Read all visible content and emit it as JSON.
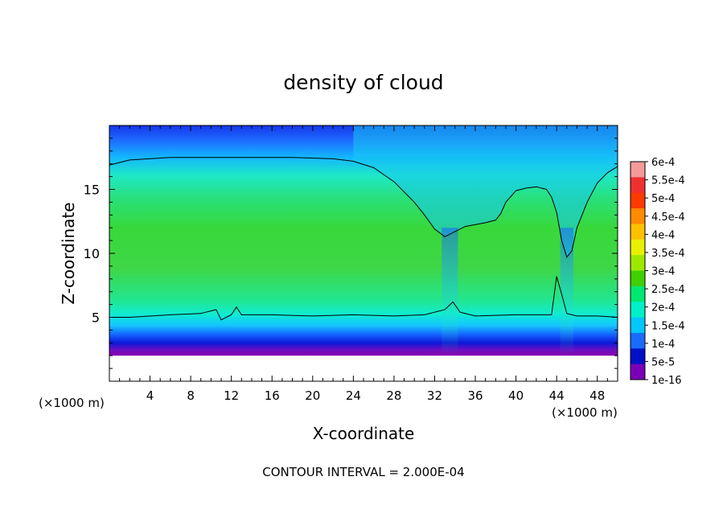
{
  "chart_data": {
    "type": "heatmap",
    "title": "density of cloud",
    "xlabel": "X-coordinate",
    "ylabel": "Z-coordinate",
    "x_unit": "(×1000 m)",
    "y_unit": "(×1000 m)",
    "xlim": [
      0,
      50
    ],
    "ylim": [
      0,
      20
    ],
    "x_ticks": [
      4,
      8,
      12,
      16,
      20,
      24,
      28,
      32,
      36,
      40,
      44,
      48
    ],
    "y_ticks": [
      5,
      10,
      15
    ],
    "footer": "CONTOUR INTERVAL = 2.000E-04",
    "colorbar": {
      "labels": [
        "6e-4",
        "5.5e-4",
        "5e-4",
        "4.5e-4",
        "4e-4",
        "3.5e-4",
        "3e-4",
        "2.5e-4",
        "2e-4",
        "1.5e-4",
        "1e-4",
        "5e-5",
        "1e-16"
      ],
      "colors": [
        "#f49a9a",
        "#f03030",
        "#ff3a00",
        "#ff8a00",
        "#ffc000",
        "#e8f000",
        "#9ee800",
        "#40d000",
        "#00e870",
        "#00f0c8",
        "#00c8ff",
        "#1a6cff",
        "#0010c8",
        "#7a00b8"
      ]
    },
    "field": {
      "cloud_base_km": 2.0,
      "cloud_top_km": 19.6,
      "core_value": 0.00027,
      "contour_2e-4": {
        "x": [
          0,
          2,
          6,
          10,
          14,
          18,
          22,
          24,
          26,
          28,
          30,
          31,
          32,
          33,
          35,
          37,
          38,
          38.5,
          39,
          40,
          41,
          42,
          43,
          43.5,
          44,
          44.5,
          45,
          45.5,
          46,
          47,
          48,
          49,
          50
        ],
        "upper_z": [
          16.9,
          17.3,
          17.5,
          17.5,
          17.5,
          17.5,
          17.4,
          17.2,
          16.7,
          15.6,
          14.0,
          13.0,
          11.9,
          11.3,
          12.1,
          12.4,
          12.6,
          13.1,
          14.0,
          14.9,
          15.1,
          15.2,
          15.0,
          14.4,
          13.2,
          11.0,
          9.7,
          10.2,
          12.0,
          14.0,
          15.5,
          16.3,
          16.8
        ]
      }
    }
  }
}
